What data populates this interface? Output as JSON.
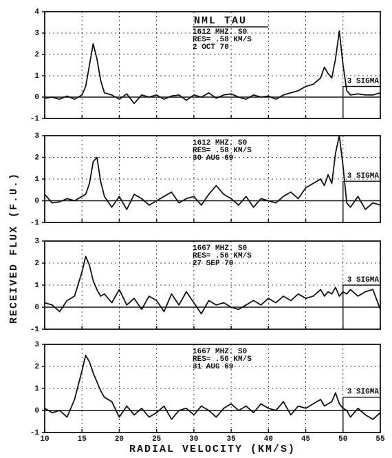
{
  "ylabel": "RECEIVED FLUX (F.U.)",
  "chart_data": [
    {
      "type": "line",
      "color": "#111111",
      "annotations": [
        "NML TAU",
        "1612 MHZ. S0",
        "RES= .58 KM/S",
        "2 OCT 70"
      ],
      "sigma_label": "3 SIGMA",
      "sigma_level": 0.5,
      "x": [
        10,
        11,
        12,
        13,
        14,
        15,
        15.5,
        16,
        16.5,
        17,
        17.5,
        18,
        19,
        20,
        21,
        22,
        23,
        24,
        25,
        26,
        27,
        28,
        29,
        30,
        31,
        32,
        33,
        34,
        35,
        36,
        37,
        38,
        39,
        40,
        41,
        42,
        43,
        44,
        45,
        46,
        47,
        47.5,
        48,
        48.5,
        49,
        49.5,
        50,
        50.5,
        51,
        52,
        53,
        54,
        55
      ],
      "values": [
        -0.05,
        0,
        -0.1,
        0.05,
        -0.1,
        0.1,
        0.5,
        1.5,
        2.5,
        1.8,
        0.8,
        0.2,
        0.1,
        -0.1,
        0.15,
        -0.3,
        0.1,
        0,
        0.1,
        -0.1,
        0.05,
        0.1,
        -0.15,
        0.1,
        0,
        0.2,
        -0.05,
        0.1,
        0.15,
        0,
        -0.1,
        0.1,
        0,
        0.05,
        -0.1,
        0.1,
        0.2,
        0.3,
        0.5,
        0.6,
        0.9,
        1.4,
        1.1,
        0.9,
        1.8,
        3.1,
        1.5,
        0.3,
        0.1,
        0.15,
        0.1,
        0.1,
        0.2
      ],
      "xlim": [
        10,
        55
      ],
      "xticks": [
        10,
        15,
        20,
        25,
        30,
        35,
        40,
        45,
        50,
        55
      ],
      "ylim": [
        -1,
        4
      ],
      "yticks": [
        -1,
        0,
        1,
        2,
        3,
        4
      ],
      "grid": true
    },
    {
      "type": "line",
      "color": "#111111",
      "annotations": [
        "1612 MHZ. S0",
        "RES= .58 KM/S",
        "30 AUG 69"
      ],
      "sigma_label": "3 SIGMA",
      "sigma_level": 0.9,
      "x": [
        10,
        11,
        12,
        13,
        14,
        15,
        15.5,
        16,
        16.5,
        17,
        17.5,
        18,
        19,
        20,
        21,
        22,
        23,
        24,
        25,
        26,
        27,
        28,
        29,
        30,
        31,
        32,
        33,
        34,
        35,
        36,
        37,
        38,
        39,
        40,
        41,
        42,
        43,
        44,
        45,
        46,
        47,
        47.5,
        48,
        48.5,
        49,
        49.5,
        50,
        50.5,
        51,
        52,
        53,
        54,
        55
      ],
      "values": [
        0.3,
        -0.1,
        -0.05,
        0.1,
        0,
        0.2,
        0.3,
        0.8,
        1.8,
        2.0,
        0.9,
        0.2,
        -0.3,
        0.2,
        -0.4,
        0.3,
        0.1,
        -0.2,
        0,
        0.2,
        0.4,
        -0.1,
        0.1,
        0.2,
        -0.2,
        0.3,
        0.7,
        0.3,
        0.1,
        -0.2,
        0.2,
        -0.3,
        0.1,
        0,
        -0.1,
        0.2,
        0.4,
        0.1,
        0.6,
        0.8,
        1.0,
        0.7,
        1.2,
        0.8,
        2.2,
        3.0,
        1.6,
        -0.1,
        -0.3,
        0.2,
        -0.4,
        -0.1,
        -0.2
      ],
      "xlim": [
        10,
        55
      ],
      "xticks": [
        10,
        15,
        20,
        25,
        30,
        35,
        40,
        45,
        50,
        55
      ],
      "ylim": [
        -1,
        3
      ],
      "yticks": [
        -1,
        0,
        1,
        2,
        3
      ],
      "grid": true
    },
    {
      "type": "line",
      "color": "#111111",
      "annotations": [
        "1667 MHZ. S0",
        "RES= .56 KM/S",
        "27 SEP 70"
      ],
      "sigma_label": "3 SIGMA",
      "sigma_level": 1.0,
      "x": [
        10,
        11,
        12,
        13,
        14,
        15,
        15.5,
        16,
        16.5,
        17,
        17.5,
        18,
        19,
        20,
        21,
        22,
        23,
        24,
        25,
        26,
        27,
        28,
        29,
        30,
        31,
        32,
        33,
        34,
        35,
        36,
        37,
        38,
        39,
        40,
        41,
        42,
        43,
        44,
        45,
        46,
        47,
        47.5,
        48,
        48.5,
        49,
        49.5,
        50,
        50.5,
        51,
        52,
        53,
        54,
        55
      ],
      "values": [
        0.2,
        0.1,
        -0.2,
        0.3,
        0.5,
        1.6,
        2.3,
        1.9,
        1.2,
        0.8,
        0.5,
        0.6,
        0.2,
        0.8,
        0.1,
        0.4,
        -0.1,
        0.5,
        0.3,
        -0.2,
        0.6,
        0.1,
        0.7,
        0.2,
        -0.3,
        0.3,
        0.1,
        0.2,
        0,
        -0.1,
        0.1,
        0.3,
        0.1,
        0.4,
        0.2,
        0.5,
        0.3,
        0.6,
        0.4,
        0.5,
        0.8,
        0.5,
        0.7,
        0.6,
        0.9,
        0.5,
        0.7,
        0.6,
        0.8,
        0.5,
        0.7,
        0.8,
        -0.1
      ],
      "xlim": [
        10,
        55
      ],
      "xticks": [
        10,
        15,
        20,
        25,
        30,
        35,
        40,
        45,
        50,
        55
      ],
      "ylim": [
        -1,
        3
      ],
      "yticks": [
        -1,
        0,
        1,
        2,
        3
      ],
      "grid": true
    },
    {
      "type": "line",
      "color": "#111111",
      "annotations": [
        "1667 MHZ. S0",
        "RES= .56 KM/S",
        "31 AUG 69"
      ],
      "sigma_label": "3 SIGMA",
      "sigma_level": 0.6,
      "x": [
        10,
        11,
        12,
        13,
        14,
        15,
        15.5,
        16,
        16.5,
        17,
        17.5,
        18,
        19,
        20,
        21,
        22,
        23,
        24,
        25,
        26,
        27,
        28,
        29,
        30,
        31,
        32,
        33,
        34,
        35,
        36,
        37,
        38,
        39,
        40,
        41,
        42,
        43,
        44,
        45,
        46,
        47,
        47.5,
        48,
        48.5,
        49,
        49.5,
        50,
        50.5,
        51,
        52,
        53,
        54,
        55
      ],
      "values": [
        0.1,
        -0.1,
        0,
        -0.3,
        0.5,
        1.8,
        2.5,
        2.2,
        1.7,
        1.3,
        0.9,
        0.6,
        0.4,
        -0.3,
        0.2,
        -0.2,
        0.1,
        -0.3,
        -0.1,
        0.2,
        -0.4,
        0,
        0.1,
        -0.2,
        0.2,
        0,
        -0.3,
        0.1,
        0.3,
        0,
        0.2,
        -0.1,
        0.3,
        0.1,
        0,
        0.4,
        -0.2,
        0.2,
        0.1,
        0.3,
        0.5,
        0.2,
        0.3,
        0.4,
        0.8,
        0.3,
        0.1,
        0,
        -0.3,
        0.1,
        -0.2,
        -0.4,
        -0.1
      ],
      "xlim": [
        10,
        55
      ],
      "xticks": [
        10,
        15,
        20,
        25,
        30,
        35,
        40,
        45,
        50,
        55
      ],
      "ylim": [
        -1,
        3
      ],
      "yticks": [
        -1,
        0,
        1,
        2,
        3
      ],
      "grid": true,
      "xlabel": "RADIAL VELOCITY (KM/S)",
      "show_xtick_labels": true
    }
  ]
}
